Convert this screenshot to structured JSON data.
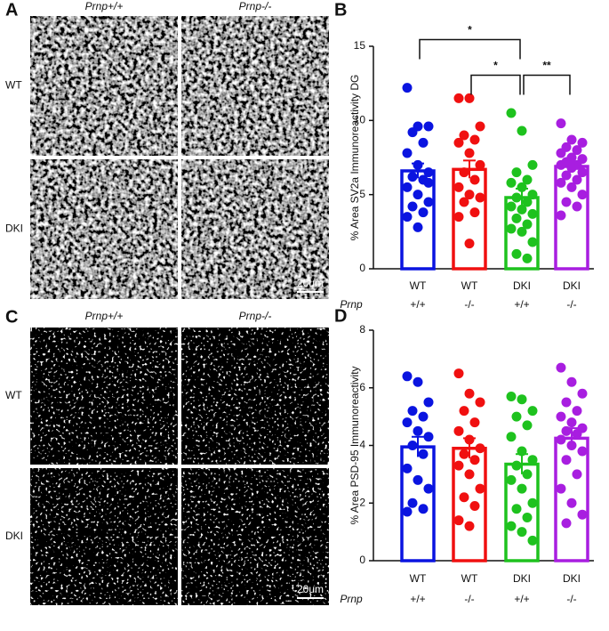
{
  "image_panels": [
    {
      "label": "A",
      "column_labels": [
        "Prnp+/+",
        "Prnp-/-"
      ],
      "row_labels": [
        "WT",
        "DKI"
      ],
      "scale_bar": "20um"
    },
    {
      "label": "C",
      "column_labels": [
        "Prnp+/+",
        "Prnp-/-"
      ],
      "row_labels": [
        "WT",
        "DKI"
      ],
      "scale_bar": "20um"
    }
  ],
  "chart_data": [
    {
      "type": "bar",
      "panel_label": "B",
      "y_label": "% Area SV2a Immunoreactivity DG",
      "categories": [
        "WT",
        "WT",
        "DKI",
        "DKI"
      ],
      "row_label": "Prnp",
      "genotypes": [
        "+/+",
        "-/-",
        "+/+",
        "-/-"
      ],
      "colors": [
        "#0a14e0",
        "#f01010",
        "#1ec21e",
        "#a81ee0"
      ],
      "values": [
        6.6,
        6.7,
        4.8,
        6.9
      ],
      "errors": [
        0.5,
        0.6,
        0.6,
        0.3
      ],
      "points": [
        [
          12.2,
          9.6,
          9.6,
          9.2,
          8.5,
          7.8,
          7.0,
          6.5,
          6.2,
          6.0,
          5.5,
          5.0,
          4.5,
          4.2,
          3.8,
          3.5,
          2.8,
          5.8
        ],
        [
          11.5,
          11.5,
          9.6,
          9.0,
          8.7,
          8.5,
          7.8,
          7.0,
          6.5,
          6.0,
          5.5,
          5.0,
          4.8,
          4.5,
          3.8,
          3.5,
          1.7
        ],
        [
          10.5,
          9.3,
          7.0,
          6.5,
          6.0,
          5.8,
          5.5,
          5.0,
          4.8,
          4.5,
          4.2,
          4.0,
          3.7,
          3.4,
          3.0,
          2.7,
          2.5,
          1.8,
          1.0,
          0.7
        ],
        [
          9.8,
          8.7,
          8.5,
          8.2,
          8.0,
          7.8,
          7.5,
          7.4,
          7.2,
          7.0,
          7.0,
          6.8,
          6.5,
          6.3,
          6.0,
          5.8,
          5.5,
          5.0,
          4.5,
          4.2,
          3.6
        ]
      ],
      "ylim": [
        0,
        15
      ],
      "yticks": [
        0,
        5,
        10,
        15
      ],
      "comparisons": [
        {
          "label": "*",
          "groups": [
            0,
            2
          ]
        },
        {
          "label": "*",
          "groups": [
            1,
            2
          ]
        },
        {
          "label": "**",
          "groups": [
            2,
            3
          ]
        }
      ]
    },
    {
      "type": "bar",
      "panel_label": "D",
      "y_label": "% Area PSD-95 Immunoreactivity",
      "categories": [
        "WT",
        "WT",
        "DKI",
        "DKI"
      ],
      "row_label": "Prnp",
      "genotypes": [
        "+/+",
        "-/-",
        "+/+",
        "-/-"
      ],
      "colors": [
        "#0a14e0",
        "#f01010",
        "#1ec21e",
        "#a81ee0"
      ],
      "values": [
        3.95,
        3.9,
        3.35,
        4.25
      ],
      "errors": [
        0.35,
        0.35,
        0.35,
        0.35
      ],
      "points": [
        [
          6.4,
          6.2,
          5.5,
          5.2,
          5.0,
          4.8,
          4.5,
          4.3,
          4.0,
          3.7,
          3.2,
          2.8,
          2.5,
          2.0,
          1.8,
          1.7
        ],
        [
          6.5,
          5.8,
          5.5,
          5.2,
          4.8,
          4.5,
          4.2,
          3.9,
          3.7,
          3.5,
          3.3,
          3.0,
          2.5,
          2.2,
          1.9,
          1.4,
          1.2
        ],
        [
          5.7,
          5.6,
          5.2,
          5.0,
          4.7,
          4.3,
          3.8,
          3.5,
          3.3,
          3.0,
          2.8,
          2.5,
          2.0,
          1.8,
          1.5,
          1.2,
          1.0,
          0.7
        ],
        [
          6.7,
          6.2,
          5.8,
          5.5,
          5.2,
          5.0,
          4.8,
          4.6,
          4.5,
          4.4,
          4.2,
          4.0,
          3.8,
          3.5,
          3.0,
          2.5,
          2.0,
          1.6,
          1.3
        ]
      ],
      "ylim": [
        0,
        8
      ],
      "yticks": [
        0,
        2,
        4,
        6,
        8
      ],
      "comparisons": []
    }
  ]
}
